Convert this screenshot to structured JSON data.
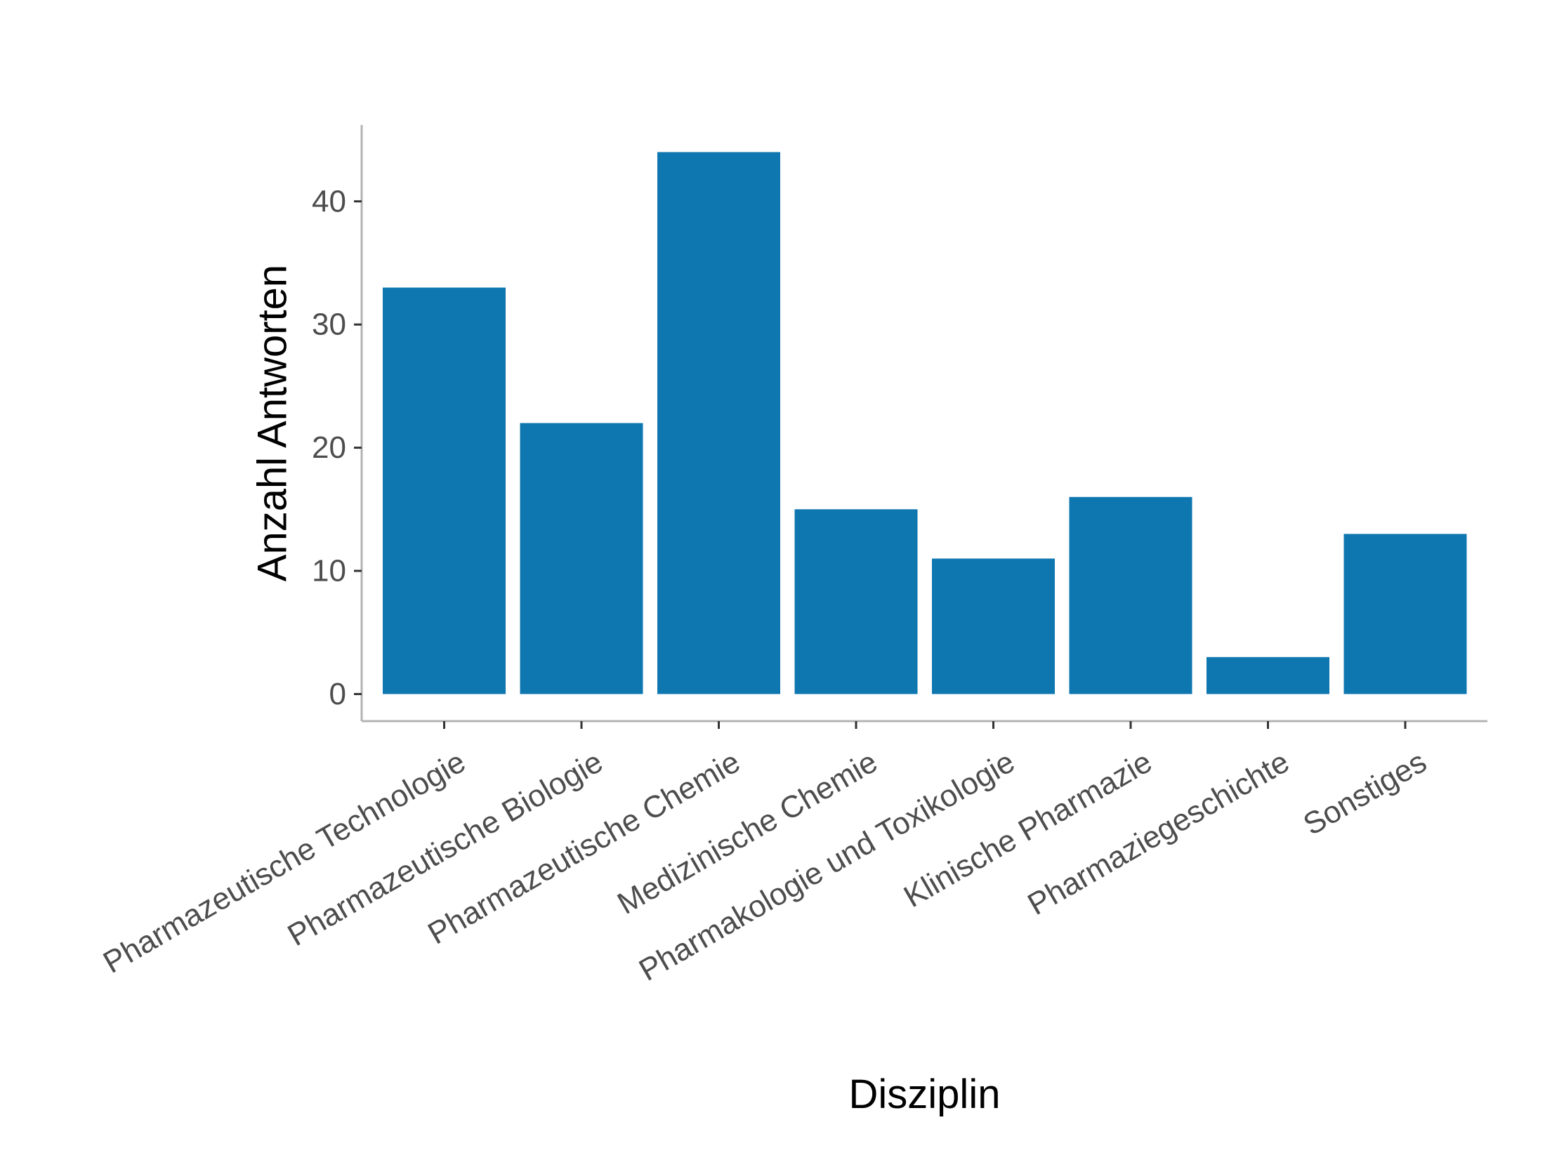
{
  "chart_data": {
    "type": "bar",
    "title": "",
    "xlabel": "Disziplin",
    "ylabel": "Anzahl Antworten",
    "categories": [
      "Pharmazeutische Technologie",
      "Pharmazeutische Biologie",
      "Pharmazeutische Chemie",
      "Medizinische Chemie",
      "Pharmakologie und Toxikologie",
      "Klinische Pharmazie",
      "Pharmaziegeschichte",
      "Sonstiges"
    ],
    "values": [
      33,
      22,
      44,
      15,
      11,
      16,
      3,
      13
    ],
    "yticks": [
      0,
      10,
      20,
      30,
      40
    ],
    "ylim": [
      -2.2,
      46.2
    ],
    "grid": false,
    "legend": "none",
    "bar_color": "#0f77b0"
  }
}
